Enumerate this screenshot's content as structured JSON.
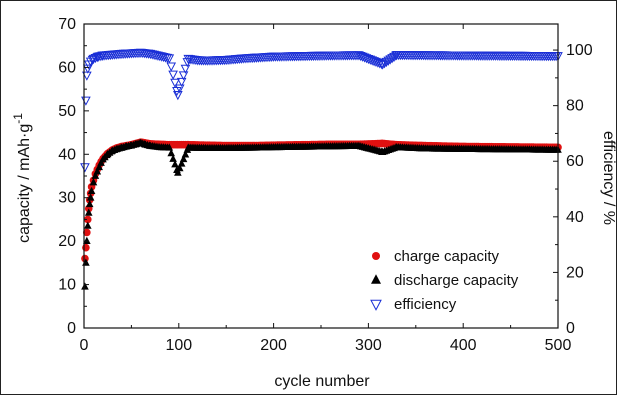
{
  "chart_data": {
    "type": "scatter",
    "xlabel": "cycle number",
    "ylabel_left": "capacity / mAh·g",
    "ylabel_left_superscript": "-1",
    "ylabel_right": "efficiency / %",
    "xlim": [
      0,
      500
    ],
    "ylim_left": [
      0,
      70
    ],
    "ylim_right": [
      0,
      109.375
    ],
    "x_ticks": [
      "0",
      "100",
      "200",
      "300",
      "400",
      "500"
    ],
    "y_left_ticks": [
      "0",
      "10",
      "20",
      "30",
      "40",
      "50",
      "60",
      "70"
    ],
    "y_right_ticks": [
      "0",
      "20",
      "40",
      "60",
      "80",
      "100"
    ],
    "legend_position": "bottom-right",
    "series": [
      {
        "name": "charge capacity",
        "axis": "left",
        "marker": "circle",
        "color": "#e01010",
        "points": [
          [
            1,
            16
          ],
          [
            2,
            18.5
          ],
          [
            3,
            22
          ],
          [
            4,
            25
          ],
          [
            5,
            27.5
          ],
          [
            6,
            29.5
          ],
          [
            7,
            31
          ],
          [
            8,
            32.5
          ],
          [
            10,
            34
          ],
          [
            12,
            35.5
          ],
          [
            14,
            36.5
          ],
          [
            16,
            37.5
          ],
          [
            18,
            38.3
          ],
          [
            20,
            39
          ],
          [
            25,
            40.2
          ],
          [
            30,
            41
          ],
          [
            35,
            41.5
          ],
          [
            40,
            41.8
          ],
          [
            45,
            42
          ],
          [
            50,
            42.2
          ],
          [
            55,
            42.5
          ],
          [
            60,
            42.8
          ],
          [
            65,
            42.6
          ],
          [
            70,
            42.4
          ],
          [
            80,
            42.3
          ],
          [
            90,
            42.2
          ],
          [
            99,
            42.2
          ],
          [
            110,
            42.2
          ],
          [
            130,
            42.1
          ],
          [
            150,
            42
          ],
          [
            180,
            42
          ],
          [
            200,
            42.1
          ],
          [
            230,
            42.2
          ],
          [
            260,
            42.3
          ],
          [
            290,
            42.3
          ],
          [
            315,
            42.5
          ],
          [
            330,
            42.2
          ],
          [
            360,
            42
          ],
          [
            400,
            41.8
          ],
          [
            450,
            41.7
          ],
          [
            500,
            41.6
          ]
        ]
      },
      {
        "name": "discharge capacity",
        "axis": "left",
        "marker": "triangle-up",
        "color": "#000000",
        "points": [
          [
            1,
            9.5
          ],
          [
            2,
            15
          ],
          [
            3,
            20
          ],
          [
            4,
            23.5
          ],
          [
            5,
            26.5
          ],
          [
            6,
            28.5
          ],
          [
            7,
            30
          ],
          [
            8,
            31.5
          ],
          [
            10,
            33.5
          ],
          [
            12,
            35
          ],
          [
            14,
            36
          ],
          [
            16,
            37
          ],
          [
            18,
            38
          ],
          [
            20,
            38.8
          ],
          [
            25,
            40
          ],
          [
            30,
            40.8
          ],
          [
            35,
            41.2
          ],
          [
            40,
            41.5
          ],
          [
            45,
            41.8
          ],
          [
            50,
            42
          ],
          [
            55,
            42.3
          ],
          [
            60,
            42.6
          ],
          [
            65,
            42.2
          ],
          [
            70,
            41.9
          ],
          [
            80,
            41.6
          ],
          [
            90,
            41.5
          ],
          [
            99,
            35.7
          ],
          [
            110,
            41.5
          ],
          [
            130,
            41.4
          ],
          [
            150,
            41.4
          ],
          [
            180,
            41.5
          ],
          [
            200,
            41.6
          ],
          [
            230,
            41.7
          ],
          [
            260,
            41.8
          ],
          [
            290,
            41.9
          ],
          [
            315,
            40.5
          ],
          [
            330,
            41.6
          ],
          [
            360,
            41.3
          ],
          [
            400,
            41.2
          ],
          [
            450,
            41.1
          ],
          [
            500,
            41
          ]
        ]
      },
      {
        "name": "efficiency",
        "axis": "right",
        "marker": "triangle-down-open",
        "color": "#1a2fd6",
        "points": [
          [
            1,
            58
          ],
          [
            2,
            82
          ],
          [
            3,
            91
          ],
          [
            4,
            93.5
          ],
          [
            5,
            95
          ],
          [
            7,
            96
          ],
          [
            10,
            97
          ],
          [
            15,
            97.8
          ],
          [
            20,
            98.2
          ],
          [
            30,
            98.5
          ],
          [
            40,
            98.8
          ],
          [
            50,
            99
          ],
          [
            60,
            99.2
          ],
          [
            70,
            98.8
          ],
          [
            80,
            98
          ],
          [
            90,
            97.2
          ],
          [
            99,
            84
          ],
          [
            110,
            97
          ],
          [
            120,
            96.5
          ],
          [
            130,
            96.4
          ],
          [
            150,
            96.6
          ],
          [
            170,
            97.2
          ],
          [
            200,
            97.8
          ],
          [
            230,
            98
          ],
          [
            260,
            98.2
          ],
          [
            290,
            98.3
          ],
          [
            315,
            95
          ],
          [
            330,
            98.4
          ],
          [
            360,
            98.3
          ],
          [
            400,
            98.2
          ],
          [
            450,
            98.1
          ],
          [
            500,
            98
          ]
        ]
      }
    ]
  }
}
